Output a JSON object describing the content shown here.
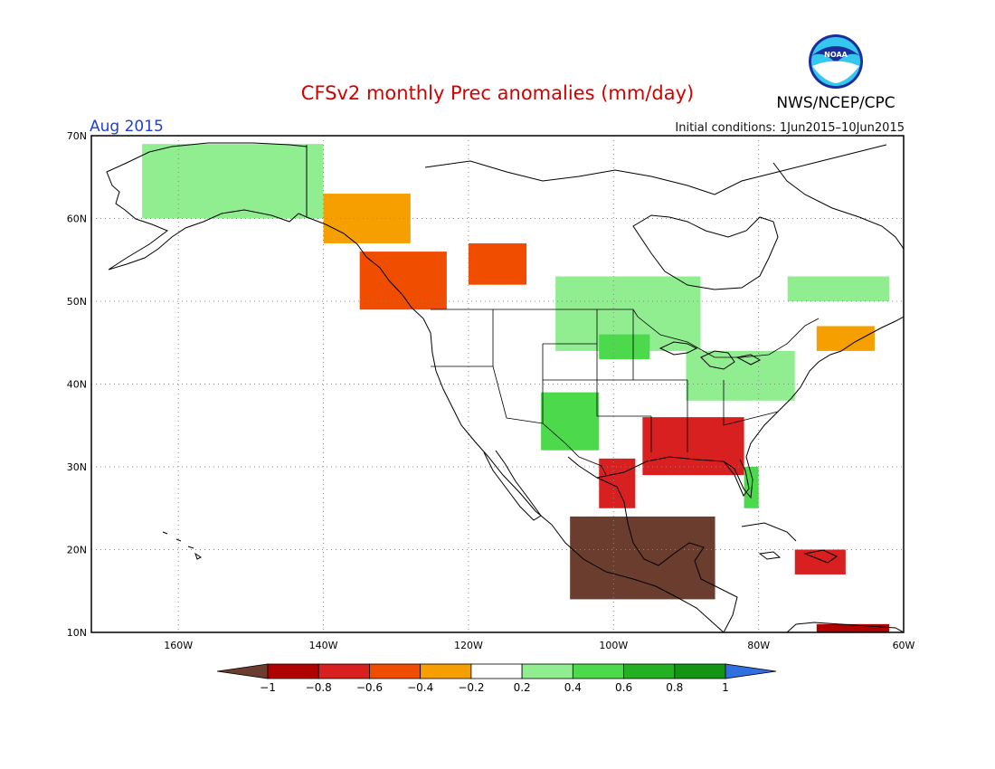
{
  "title": "CFSv2 monthly Prec anomalies (mm/day)",
  "month": "Aug 2015",
  "initial_conditions": "Initial conditions: 1Jun2015–10Jun2015",
  "agency": "NWS/NCEP/CPC",
  "logo_text": "NOAA",
  "map": {
    "lon_range": [
      -172,
      -60
    ],
    "lat_range": [
      10,
      70
    ],
    "lon_ticks": [
      {
        "value": -160,
        "label": "160W"
      },
      {
        "value": -140,
        "label": "140W"
      },
      {
        "value": -120,
        "label": "120W"
      },
      {
        "value": -100,
        "label": "100W"
      },
      {
        "value": -80,
        "label": "80W"
      },
      {
        "value": -60,
        "label": "60W"
      }
    ],
    "lat_ticks": [
      {
        "value": 10,
        "label": "10N"
      },
      {
        "value": 20,
        "label": "20N"
      },
      {
        "value": 30,
        "label": "30N"
      },
      {
        "value": 40,
        "label": "40N"
      },
      {
        "value": 50,
        "label": "50N"
      },
      {
        "value": 60,
        "label": "60N"
      },
      {
        "value": 70,
        "label": "70N"
      }
    ],
    "gridlines": "dotted"
  },
  "colorbar": {
    "labels": [
      "-1",
      "-0.8",
      "-0.6",
      "-0.4",
      "-0.2",
      "0.2",
      "0.4",
      "0.6",
      "0.8",
      "1"
    ],
    "colors": [
      "#6b3d2e",
      "#b00000",
      "#d82020",
      "#f04d00",
      "#f5a000",
      "#ffffff",
      "#90ee90",
      "#4cd94c",
      "#23b023",
      "#139413",
      "#2f6fe0"
    ],
    "extend": "both"
  },
  "anomaly_regions": [
    {
      "name": "alaska-wet",
      "level": 6,
      "lon": [
        -165,
        -140
      ],
      "lat": [
        60,
        69
      ]
    },
    {
      "name": "yukon-dry",
      "level": 4,
      "lon": [
        -140,
        -128
      ],
      "lat": [
        57,
        63
      ]
    },
    {
      "name": "bc-coast-dry",
      "level": 3,
      "lon": [
        -135,
        -123
      ],
      "lat": [
        49,
        56
      ]
    },
    {
      "name": "alberta-dry",
      "level": 3,
      "lon": [
        -120,
        -112
      ],
      "lat": [
        52,
        57
      ]
    },
    {
      "name": "canada-prairie-wet",
      "level": 6,
      "lon": [
        -108,
        -88
      ],
      "lat": [
        44,
        53
      ]
    },
    {
      "name": "upper-midwest-wet",
      "level": 7,
      "lon": [
        -102,
        -95
      ],
      "lat": [
        43,
        46
      ]
    },
    {
      "name": "colorado-wet",
      "level": 7,
      "lon": [
        -110,
        -102
      ],
      "lat": [
        32,
        39
      ]
    },
    {
      "name": "southeast-us-dry",
      "level": 2,
      "lon": [
        -96,
        -82
      ],
      "lat": [
        29,
        36
      ]
    },
    {
      "name": "texas-dry",
      "level": 2,
      "lon": [
        -102,
        -97
      ],
      "lat": [
        25,
        31
      ]
    },
    {
      "name": "mexico-very-dry",
      "level": 0,
      "lon": [
        -106,
        -86
      ],
      "lat": [
        14,
        24
      ]
    },
    {
      "name": "northeast-us-wet",
      "level": 6,
      "lon": [
        -90,
        -75
      ],
      "lat": [
        38,
        44
      ]
    },
    {
      "name": "nova-scotia-dry",
      "level": 4,
      "lon": [
        -72,
        -64
      ],
      "lat": [
        44,
        47
      ]
    },
    {
      "name": "florida-wet",
      "level": 7,
      "lon": [
        -82,
        -80
      ],
      "lat": [
        25,
        30
      ]
    },
    {
      "name": "quebec-wet",
      "level": 6,
      "lon": [
        -76,
        -62
      ],
      "lat": [
        50,
        53
      ]
    },
    {
      "name": "caribbean-dry",
      "level": 2,
      "lon": [
        -75,
        -68
      ],
      "lat": [
        17,
        20
      ]
    },
    {
      "name": "venezuela-dry",
      "level": 1,
      "lon": [
        -72,
        -62
      ],
      "lat": [
        10,
        11
      ]
    }
  ]
}
